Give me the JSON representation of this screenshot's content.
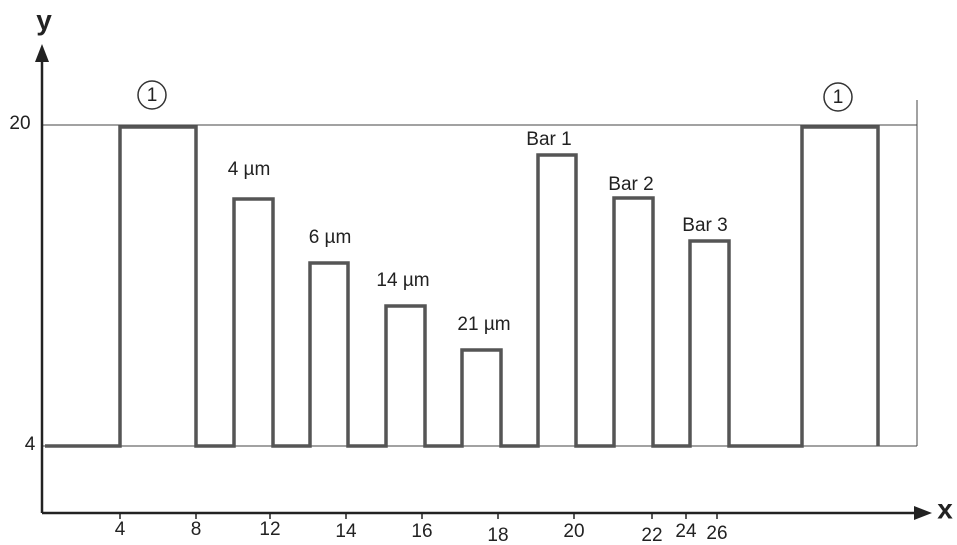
{
  "axes": {
    "y_label": "y",
    "x_label": "x",
    "y_ticks": [
      "20",
      "4"
    ],
    "x_ticks": [
      "4",
      "8",
      "12",
      "14",
      "16",
      "18",
      "20",
      "22",
      "24",
      "26"
    ]
  },
  "markers": [
    "1",
    "1"
  ],
  "labels": [
    "4 µm",
    "6 µm",
    "14 µm",
    "21 µm",
    "Bar 1",
    "Bar 2",
    "Bar 3"
  ]
}
